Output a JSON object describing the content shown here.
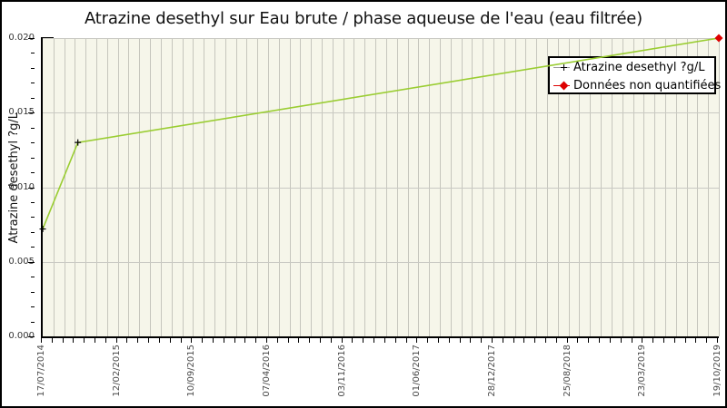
{
  "chart_data": {
    "type": "line",
    "title": "Atrazine desethyl sur Eau brute / phase aqueuse de l'eau (eau filtrée)",
    "ylabel": "Atrazine desethyl ?g/L",
    "xlabel": "",
    "ylim": [
      0,
      0.02
    ],
    "y_major_step": 0.005,
    "y_minor_step": 0.001,
    "y_tick_decimals": 3,
    "y_major_tick_labels": [
      "0.000",
      "0.005",
      "0.010",
      "0.015",
      "0.020"
    ],
    "grid": "on",
    "x_tick_labels": [
      "17/07/2014",
      "12/02/2015",
      "10/09/2015",
      "07/04/2016",
      "03/11/2016",
      "01/06/2017",
      "28/12/2017",
      "25/08/2018",
      "23/03/2019",
      "19/10/2019"
    ],
    "x_gridlines_per_label_interval": 7,
    "legend": {
      "position": "top-right",
      "items": [
        {
          "label": "Atrazine desethyl ?g/L",
          "marker": "black-plus",
          "marker_color": "#000000"
        },
        {
          "label": "Données non quantifiées",
          "marker": "red-diamond",
          "marker_color": "#dd0000"
        }
      ]
    },
    "series": [
      {
        "name": "Atrazine desethyl ?g/L",
        "color": "#9acd32",
        "marker": "plus",
        "points": [
          {
            "x_frac": 0.0,
            "x_label": "17/07/2014",
            "value": 0.0072
          },
          {
            "x_frac": 0.052,
            "x_label": "",
            "value": 0.013
          },
          {
            "x_frac": 1.0,
            "x_label": "19/10/2019",
            "value": 0.02
          }
        ]
      }
    ],
    "unquantified_points": [
      {
        "x_frac": 1.0,
        "x_label": "19/10/2019",
        "value": 0.02
      }
    ]
  },
  "colors": {
    "line": "#9acd32",
    "flag": "#dd0000",
    "plot_background": "#f6f6ea",
    "gridline": "#c6c6bd",
    "axis": "#000000"
  }
}
